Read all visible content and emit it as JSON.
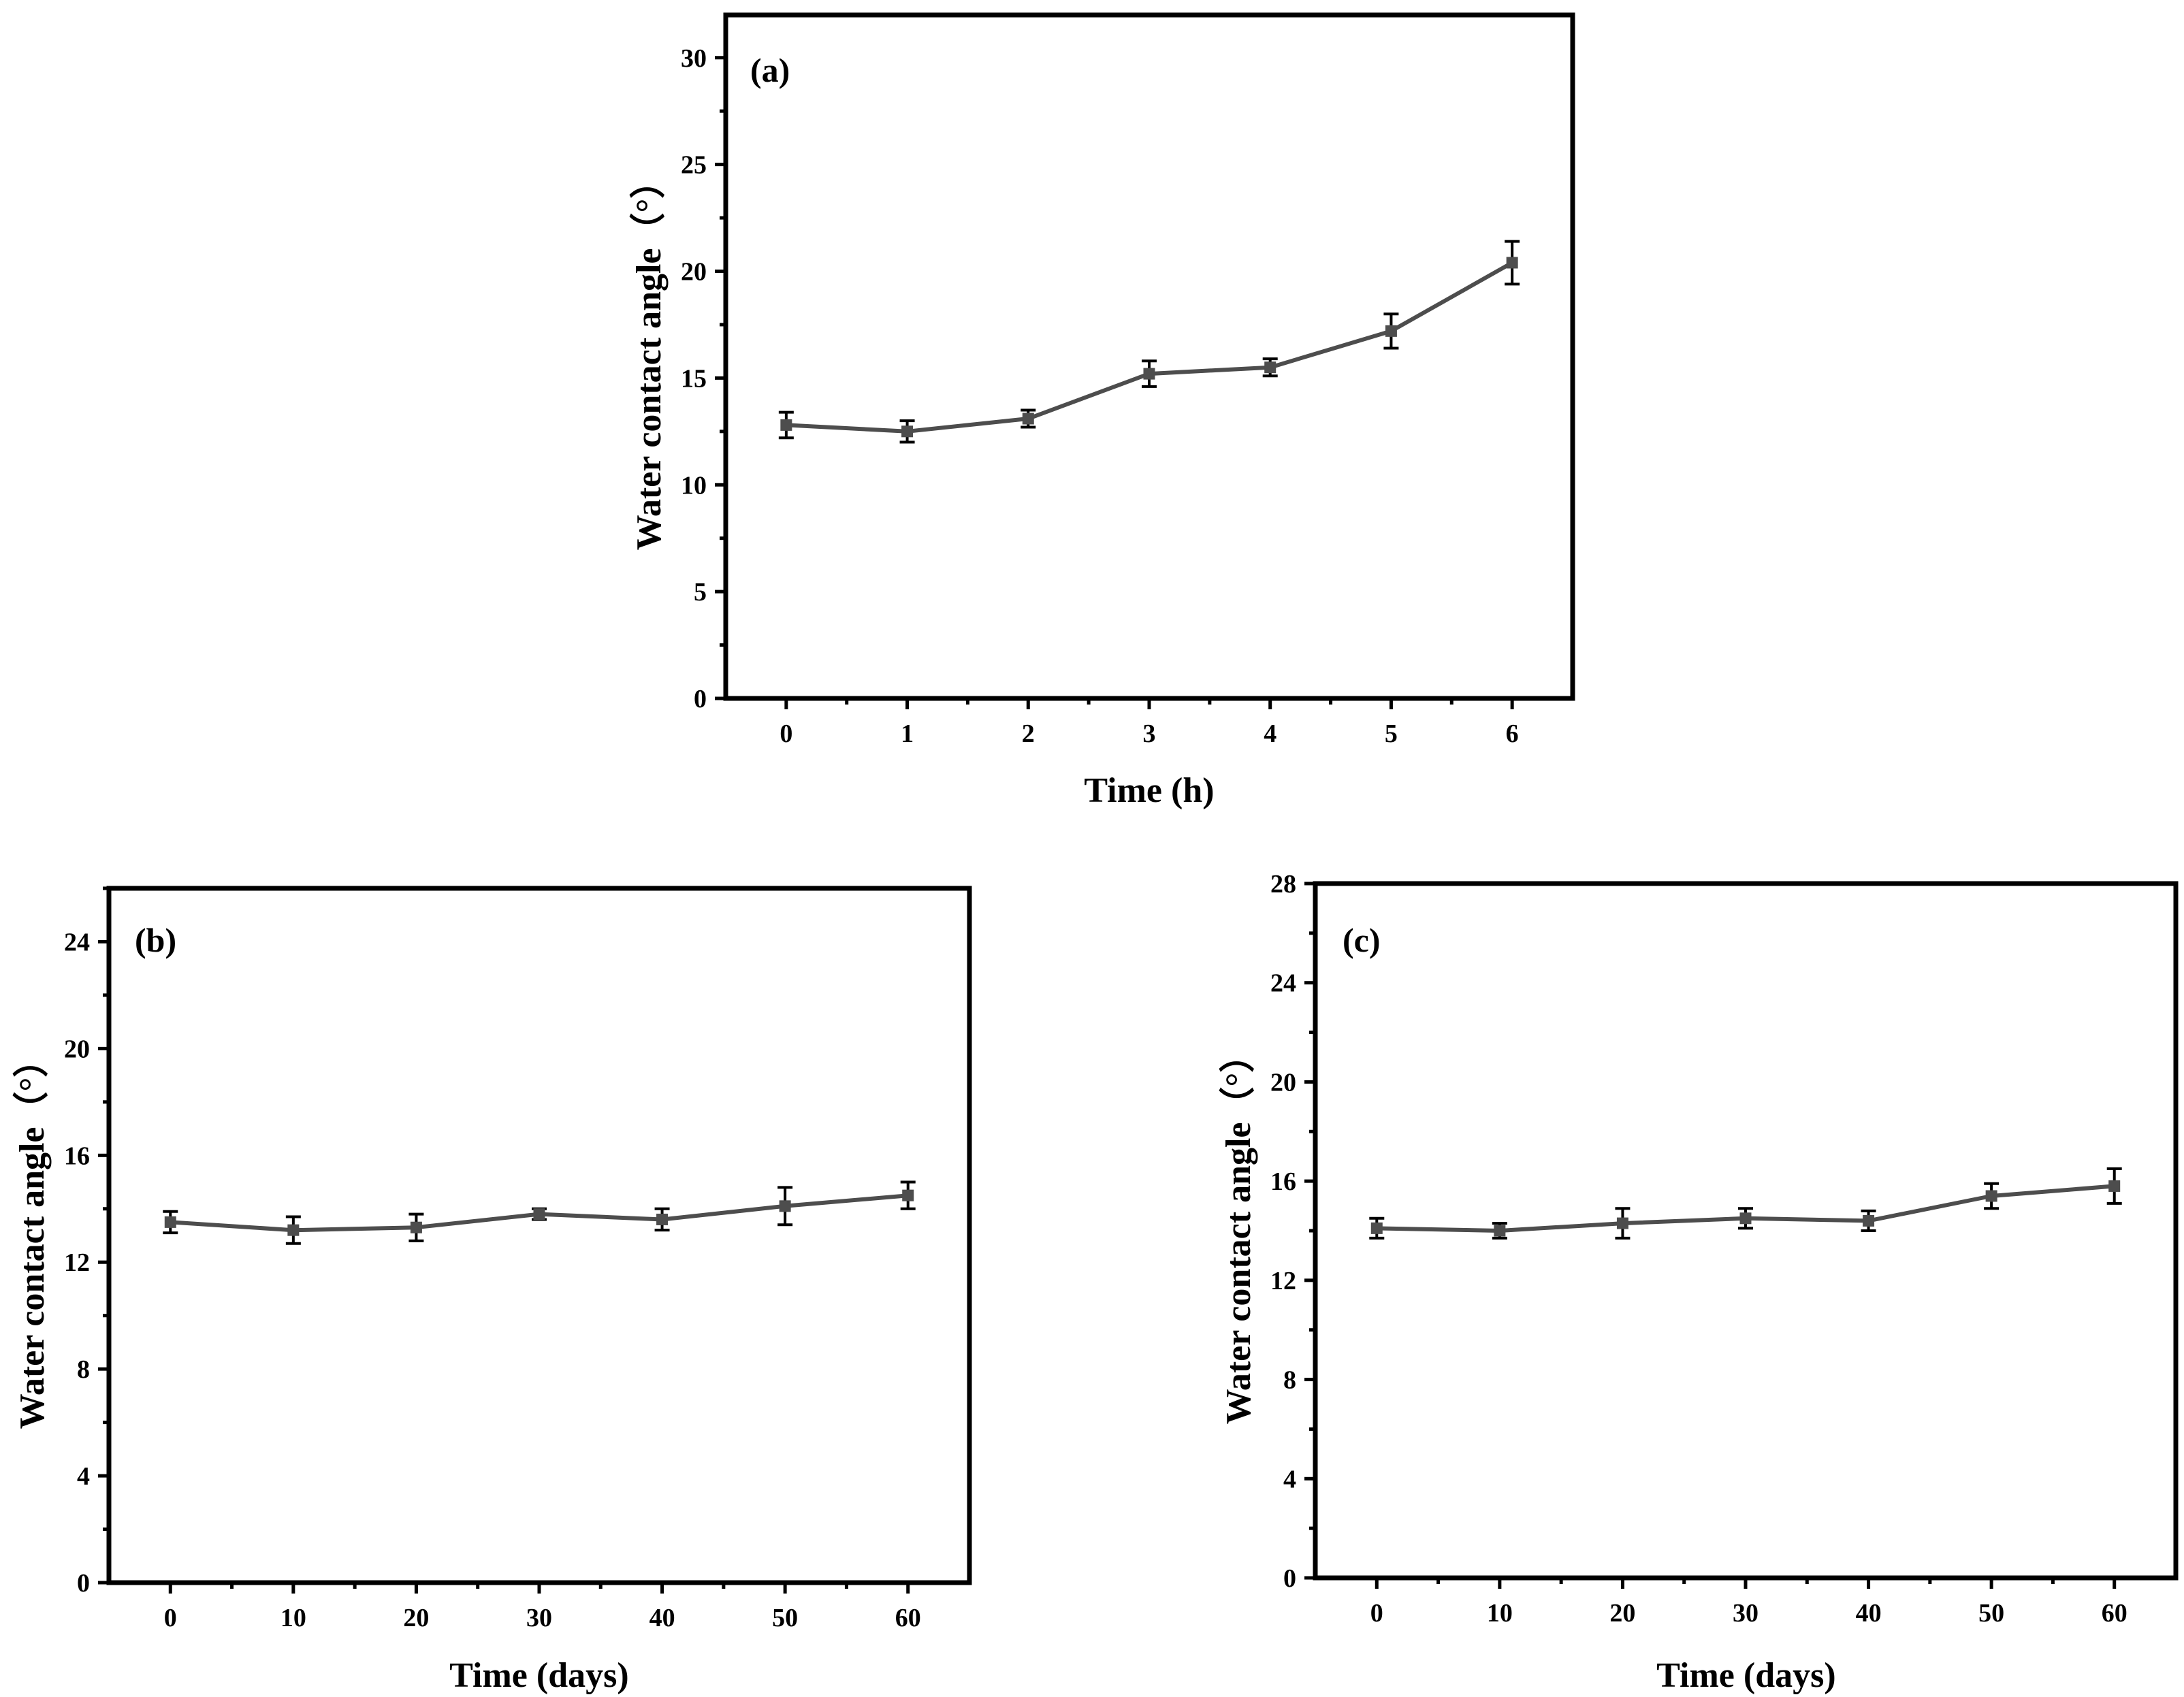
{
  "chart_data": [
    {
      "panel_label": "(a)",
      "type": "line",
      "xlabel": "Time (h)",
      "ylabel": "Water contact angle（°）",
      "xlim": [
        -0.5,
        6.5
      ],
      "ylim": [
        0,
        32
      ],
      "xticks": [
        0,
        1,
        2,
        3,
        4,
        5,
        6
      ],
      "yticks": [
        0,
        5,
        10,
        15,
        20,
        25,
        30
      ],
      "series": [
        {
          "name": "Water contact angle",
          "x": [
            0,
            1,
            2,
            3,
            4,
            5,
            6
          ],
          "y": [
            12.8,
            12.5,
            13.1,
            15.2,
            15.5,
            17.2,
            20.4
          ],
          "err": [
            0.6,
            0.5,
            0.4,
            0.6,
            0.4,
            0.8,
            1.0
          ]
        }
      ]
    },
    {
      "panel_label": "(b)",
      "type": "line",
      "xlabel": "Time (days)",
      "ylabel": "Water contact angle（°）",
      "xlim": [
        -5,
        65
      ],
      "ylim": [
        0,
        26
      ],
      "xticks": [
        0,
        10,
        20,
        30,
        40,
        50,
        60
      ],
      "yticks": [
        0,
        4,
        8,
        12,
        16,
        20,
        24
      ],
      "series": [
        {
          "name": "Water contact angle",
          "x": [
            0,
            10,
            20,
            30,
            40,
            50,
            60
          ],
          "y": [
            13.5,
            13.2,
            13.3,
            13.8,
            13.6,
            14.1,
            14.5
          ],
          "err": [
            0.4,
            0.5,
            0.5,
            0.2,
            0.4,
            0.7,
            0.5
          ]
        }
      ]
    },
    {
      "panel_label": "(c)",
      "type": "line",
      "xlabel": "Time (days)",
      "ylabel": "Water contact angle（°）",
      "xlim": [
        -5,
        65
      ],
      "ylim": [
        0,
        28
      ],
      "xticks": [
        0,
        10,
        20,
        30,
        40,
        50,
        60
      ],
      "yticks": [
        0,
        4,
        8,
        12,
        16,
        20,
        24,
        28
      ],
      "series": [
        {
          "name": "Water contact angle",
          "x": [
            0,
            10,
            20,
            30,
            40,
            50,
            60
          ],
          "y": [
            14.1,
            14.0,
            14.3,
            14.5,
            14.4,
            15.4,
            15.8
          ],
          "err": [
            0.4,
            0.3,
            0.6,
            0.4,
            0.4,
            0.5,
            0.7
          ]
        }
      ]
    }
  ]
}
